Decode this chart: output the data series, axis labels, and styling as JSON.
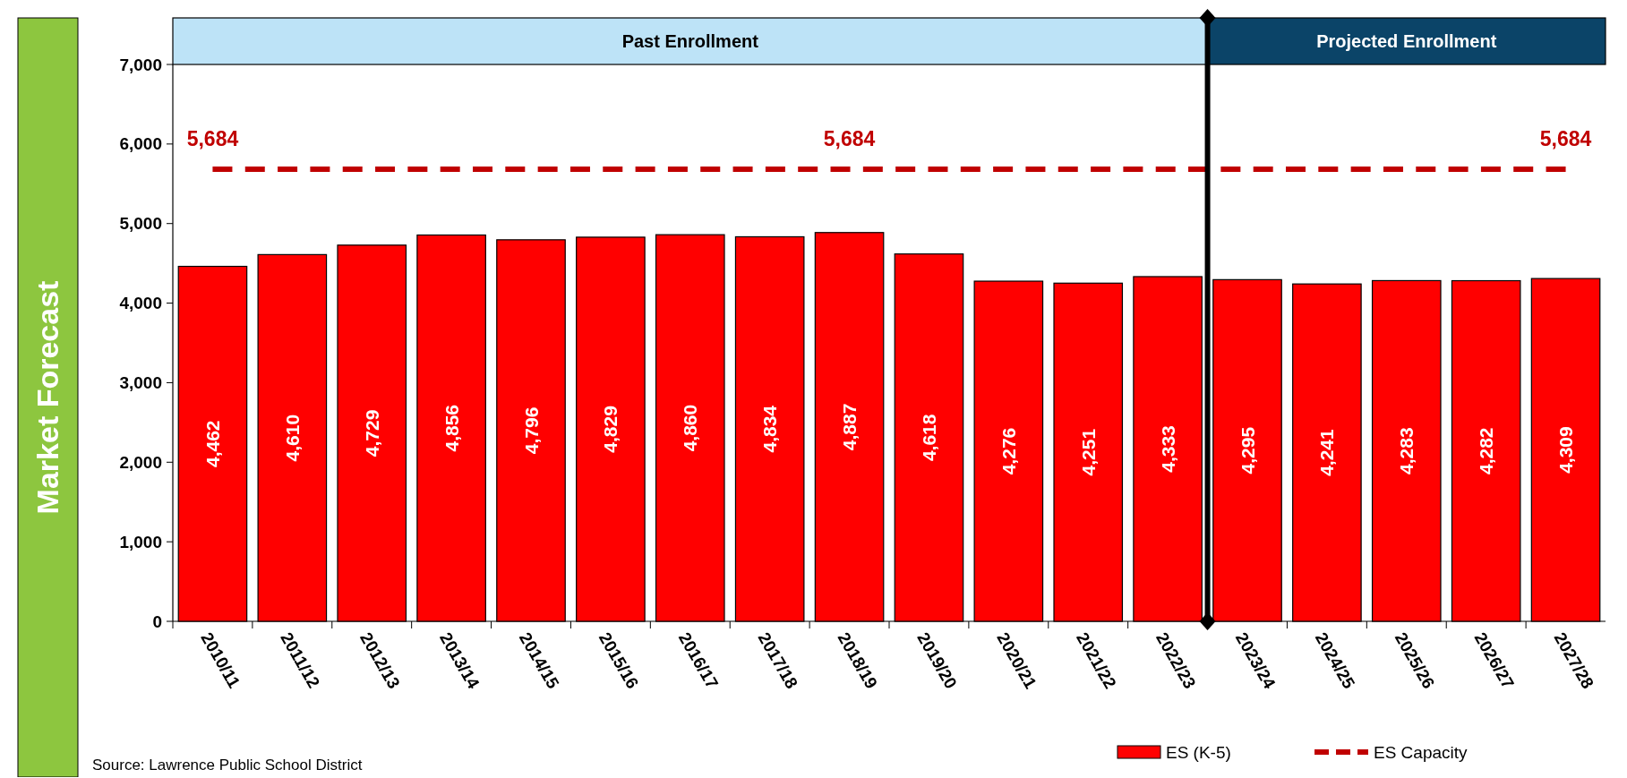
{
  "chart_data": {
    "type": "bar",
    "ylabel": "Market Forecast",
    "categories": [
      "2010/11",
      "2011/12",
      "2012/13",
      "2013/14",
      "2014/15",
      "2015/16",
      "2016/17",
      "2017/18",
      "2018/19",
      "2019/20",
      "2020/21",
      "2021/22",
      "2022/23",
      "2023/24",
      "2024/25",
      "2025/26",
      "2026/27",
      "2027/28"
    ],
    "series": [
      {
        "name": "ES (K-5)",
        "color": "#ff0000",
        "values": [
          4462,
          4610,
          4729,
          4856,
          4796,
          4829,
          4860,
          4834,
          4887,
          4618,
          4276,
          4251,
          4333,
          4295,
          4241,
          4283,
          4282,
          4309
        ],
        "value_labels": [
          "4,462",
          "4,610",
          "4,729",
          "4,856",
          "4,796",
          "4,829",
          "4,860",
          "4,834",
          "4,887",
          "4,618",
          "4,276",
          "4,251",
          "4,333",
          "4,295",
          "4,241",
          "4,283",
          "4,282",
          "4,309"
        ]
      },
      {
        "name": "ES Capacity",
        "type": "line",
        "color": "#c00000",
        "line_style": "dashed",
        "values": [
          5684,
          5684,
          5684,
          5684,
          5684,
          5684,
          5684,
          5684,
          5684,
          5684,
          5684,
          5684,
          5684,
          5684,
          5684,
          5684,
          5684,
          5684
        ],
        "value_labels": [
          "5,684",
          null,
          null,
          null,
          null,
          null,
          null,
          null,
          "5,684",
          null,
          null,
          null,
          null,
          null,
          null,
          null,
          null,
          "5,684"
        ]
      }
    ],
    "ylim": [
      0,
      7000
    ],
    "yticks": [
      0,
      {
        "value": 1000,
        "label": "1,000"
      },
      {
        "value": 2000,
        "label": "2,000"
      },
      {
        "value": 3000,
        "label": "3,000"
      },
      {
        "value": 4000,
        "label": "4,000"
      },
      {
        "value": 5000,
        "label": "5,000"
      },
      {
        "value": 6000,
        "label": "6,000"
      },
      {
        "value": 7000,
        "label": "7,000"
      }
    ],
    "grid": false,
    "legend": "bottom right",
    "annotations": [
      "Past Enrollment",
      "Projected Enrollment",
      "Source:  Lawrence Public School District"
    ]
  }
}
